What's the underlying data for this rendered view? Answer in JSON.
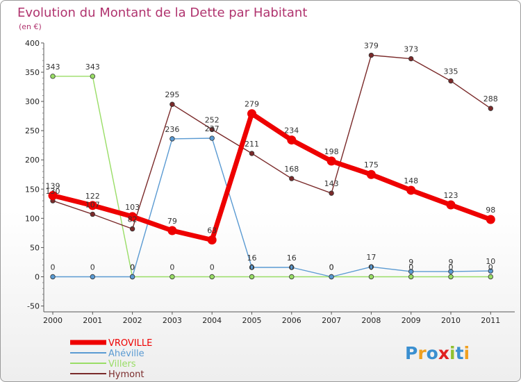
{
  "title": "Evolution du Montant de la Dette par Habitant",
  "subtitle": "(en €)",
  "logo": {
    "text": "Proxiti",
    "letters": [
      "P",
      "r",
      "o",
      "x",
      "i",
      "t",
      "i"
    ],
    "colors": [
      "#3a8fd0",
      "#f0a020",
      "#3a8fd0",
      "#e02020",
      "#90c030",
      "#3a8fd0",
      "#f0a020"
    ]
  },
  "chart_data": {
    "type": "line",
    "title": "Evolution du Montant de la Dette par Habitant",
    "subtitle": "(en €)",
    "xlabel": "",
    "ylabel": "",
    "ylim": [
      -50,
      400
    ],
    "yticks": [
      "-50",
      "0",
      "50",
      "100",
      "150",
      "200",
      "250",
      "300",
      "350",
      "400"
    ],
    "categories": [
      "2000",
      "2001",
      "2002",
      "2003",
      "2004",
      "2005",
      "2006",
      "2007",
      "2008",
      "2009",
      "2010",
      "2011"
    ],
    "legend_position": "bottom-left",
    "grid": false,
    "series": [
      {
        "name": "VROVILLE",
        "color": "#ee0000",
        "values": [
          139,
          122,
          103,
          79,
          63,
          279,
          234,
          198,
          175,
          148,
          123,
          98
        ],
        "labels": [
          "139",
          "122",
          "103",
          "79",
          "63",
          "279",
          "234",
          "198",
          "175",
          "148",
          "123",
          "98"
        ]
      },
      {
        "name": "Ahéville",
        "color": "#5a9ad2",
        "values": [
          0,
          0,
          0,
          236,
          237,
          16,
          16,
          0,
          17,
          9,
          9,
          10
        ],
        "labels": [
          "0",
          "0",
          "0",
          "236",
          "237",
          "16",
          "16",
          "0",
          "17",
          "9",
          "9",
          "10"
        ]
      },
      {
        "name": "Villers",
        "color": "#99dd66",
        "values": [
          343,
          343,
          0,
          0,
          0,
          0,
          0,
          0,
          0,
          0,
          0,
          0
        ],
        "labels": [
          "343",
          "343",
          "0",
          "0",
          "0",
          "0",
          "0",
          "0",
          "0",
          "0",
          "0",
          "0"
        ]
      },
      {
        "name": "Hymont",
        "color": "#7a2a2a",
        "values": [
          130,
          107,
          82,
          295,
          252,
          211,
          168,
          143,
          379,
          373,
          335,
          288
        ],
        "labels": [
          "130",
          "107",
          "82",
          "295",
          "252",
          "211",
          "168",
          "143",
          "379",
          "373",
          "335",
          "288"
        ]
      }
    ]
  }
}
